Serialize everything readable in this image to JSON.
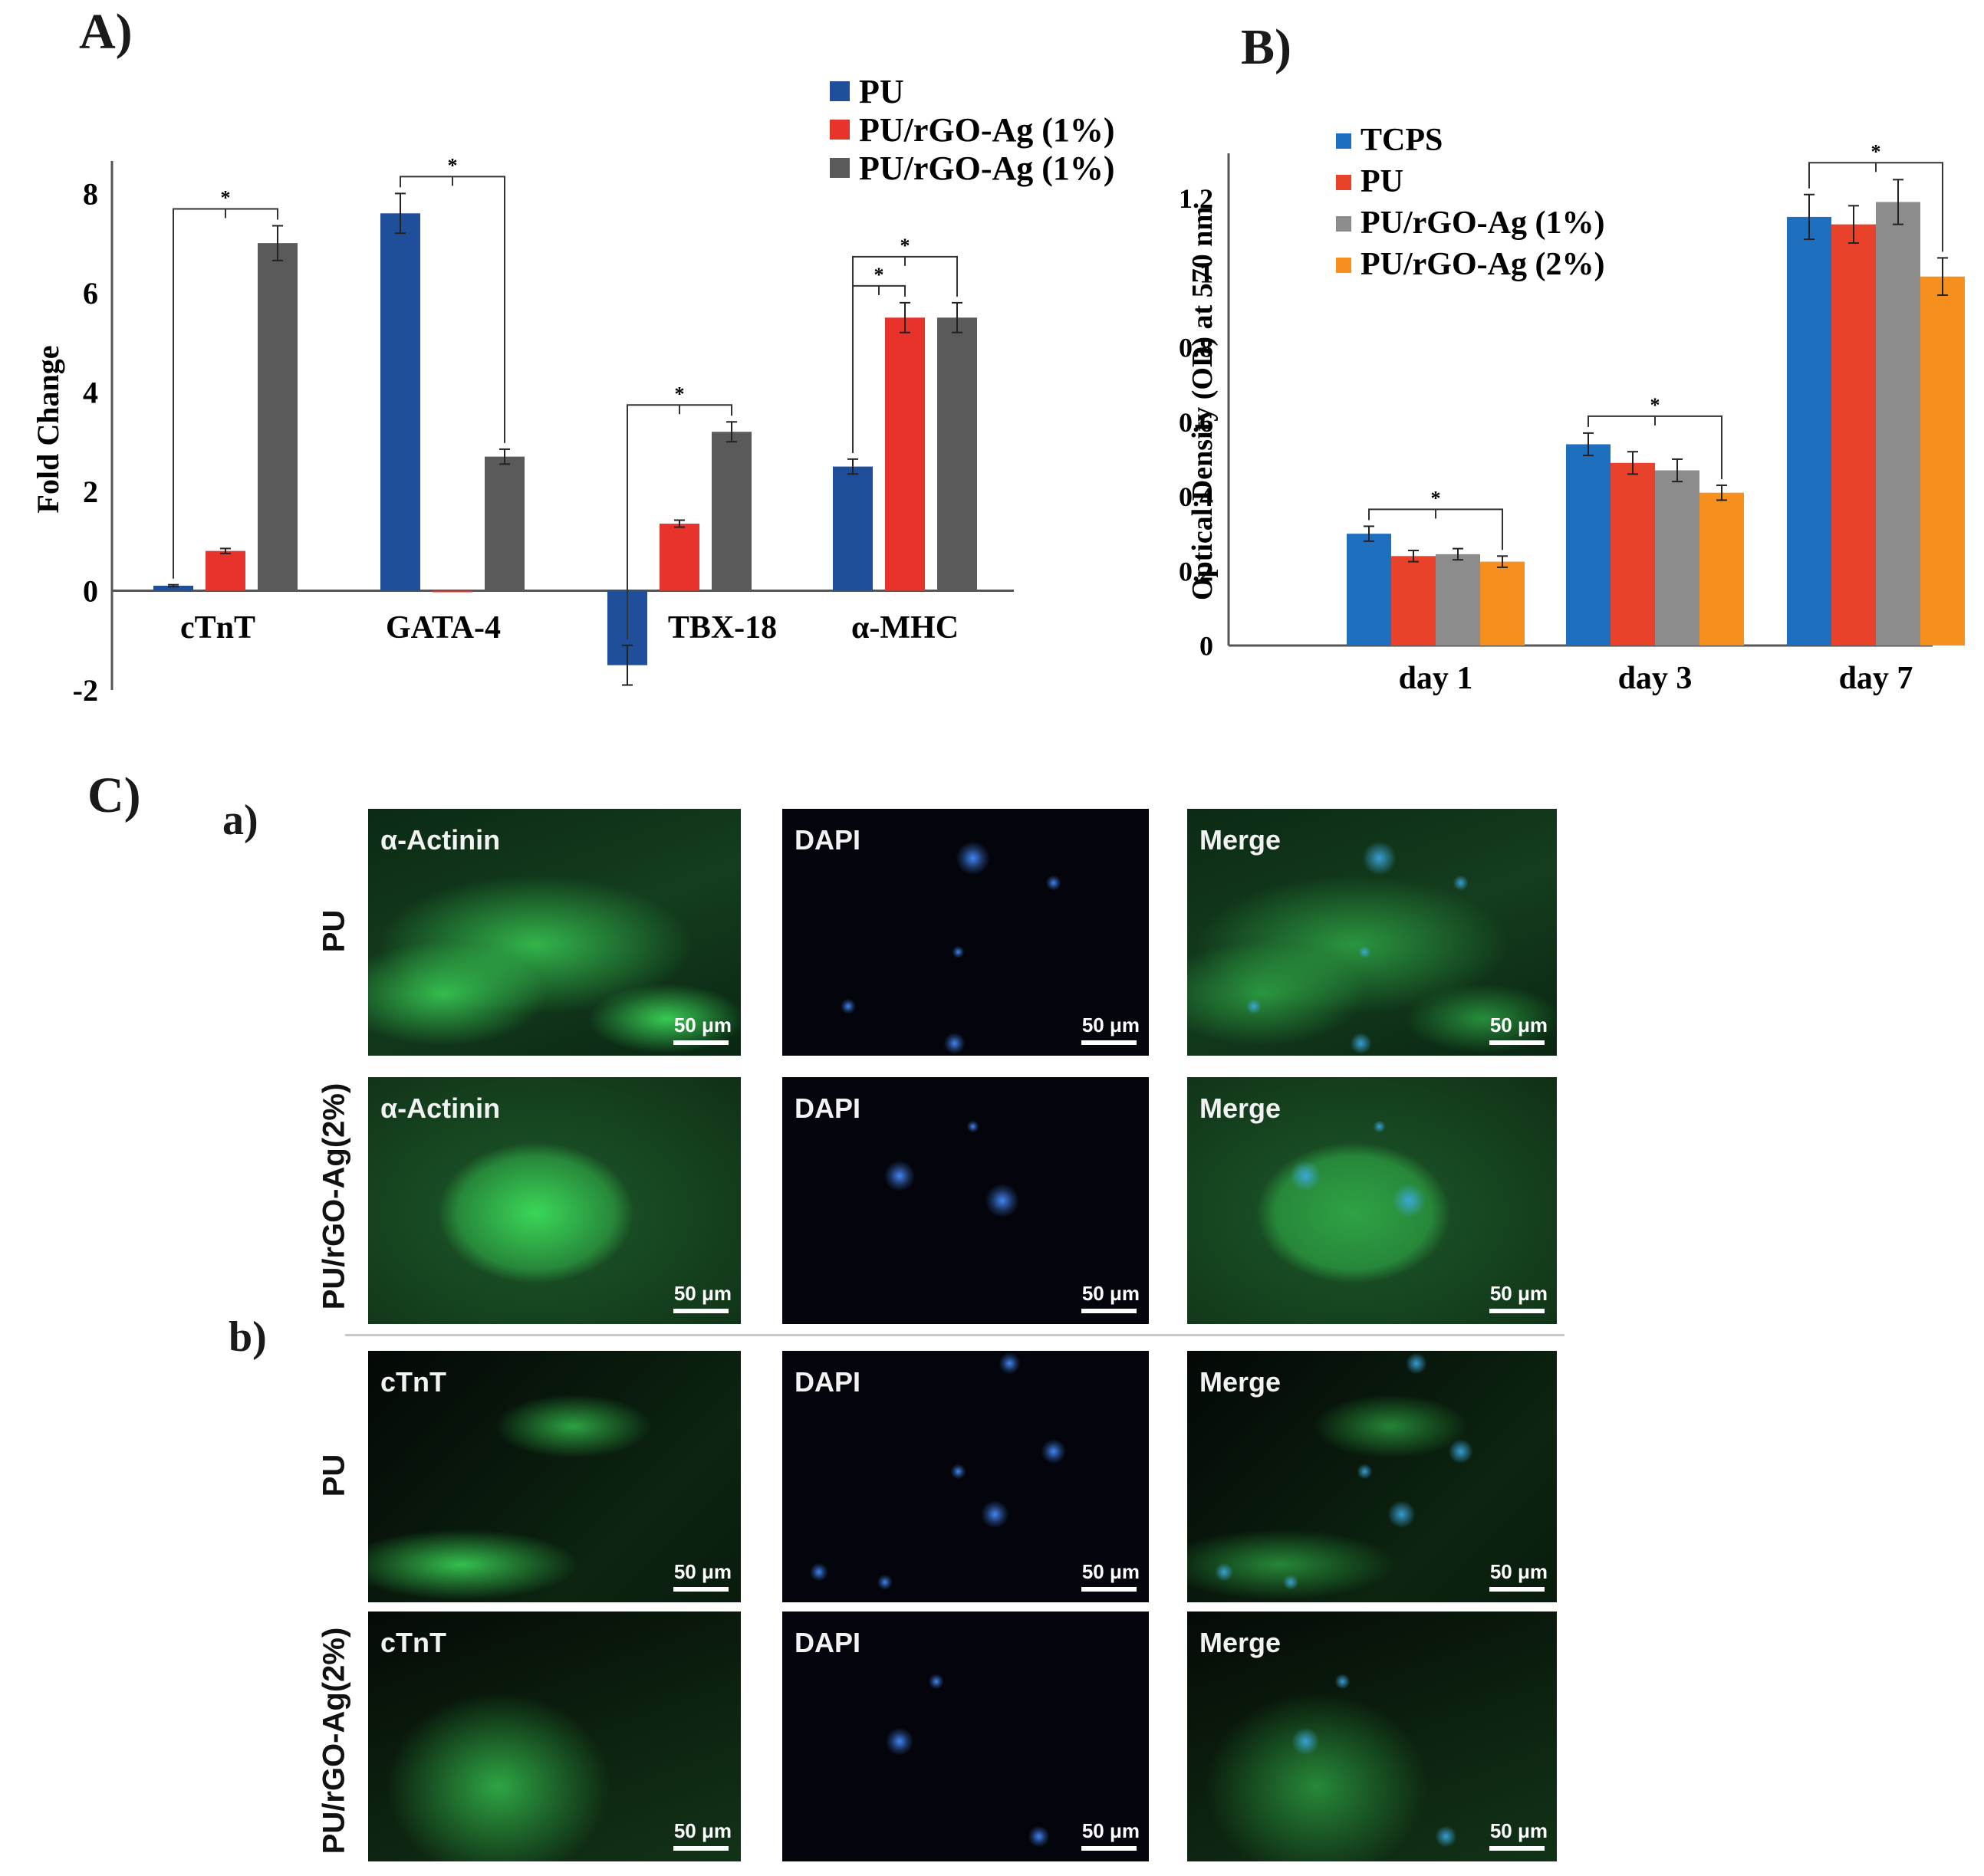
{
  "panels": {
    "A": "A)",
    "B": "B)",
    "C": "C)",
    "C_a": "a)",
    "C_b": "b)"
  },
  "chart_data": [
    {
      "panel": "A)",
      "type": "bar",
      "ylabel": "Fold Change",
      "xlabel": "",
      "ylim": [
        -2,
        8.5
      ],
      "yticks": [
        "8",
        "6",
        "4",
        "2",
        "0",
        "-2"
      ],
      "categories": [
        "cTnT",
        "GATA-4",
        "TBX-18",
        "α-MHC"
      ],
      "legend_position": "top-right",
      "series": [
        {
          "name": "PU",
          "color": "#1f4e9a",
          "values": [
            0.1,
            7.6,
            -1.5,
            2.5
          ]
        },
        {
          "name": "PU/rGO-Ag (1%)",
          "color": "#e8332a",
          "values": [
            0.8,
            0.0,
            1.35,
            5.5
          ]
        },
        {
          "name": "PU/rGO-Ag (1%)",
          "color": "#5a5a5a",
          "values": [
            7.0,
            2.7,
            3.2,
            5.5
          ]
        }
      ],
      "errors": [
        [
          0.02,
          0.4,
          0.4,
          0.15
        ],
        [
          0.05,
          0.0,
          0.07,
          0.3
        ],
        [
          0.35,
          0.15,
          0.2,
          0.3
        ]
      ],
      "significance": [
        {
          "category": 0,
          "from": 0,
          "to": 2,
          "label": "*"
        },
        {
          "category": 1,
          "from": 0,
          "to": 2,
          "label": "*"
        },
        {
          "category": 2,
          "from": 0,
          "to": 2,
          "label": "*"
        },
        {
          "category": 3,
          "from": 0,
          "to": 1,
          "label": "*"
        },
        {
          "category": 3,
          "from": 0,
          "to": 2,
          "label": "*"
        }
      ]
    },
    {
      "panel": "B)",
      "type": "bar",
      "ylabel": "Optical Density (OD) at 570 nm",
      "xlabel": "",
      "ylim": [
        0,
        1.3
      ],
      "yticks": [
        "1.2",
        "1",
        "0.8",
        "0.6",
        "0.4",
        "0.2",
        "0"
      ],
      "categories": [
        "day 1",
        "day 3",
        "day 7"
      ],
      "legend_position": "top-left",
      "series": [
        {
          "name": "TCPS",
          "color": "#1f6fbf",
          "values": [
            0.3,
            0.54,
            1.15
          ]
        },
        {
          "name": "PU",
          "color": "#e8432a",
          "values": [
            0.24,
            0.49,
            1.13
          ]
        },
        {
          "name": "PU/rGO-Ag (1%)",
          "color": "#8c8c8c",
          "values": [
            0.245,
            0.47,
            1.19
          ]
        },
        {
          "name": "PU/rGO-Ag (2%)",
          "color": "#f5901e",
          "values": [
            0.225,
            0.41,
            0.99
          ]
        }
      ],
      "errors": [
        [
          0.02,
          0.03,
          0.06
        ],
        [
          0.015,
          0.03,
          0.05
        ],
        [
          0.015,
          0.03,
          0.06
        ],
        [
          0.015,
          0.02,
          0.05
        ]
      ],
      "significance": [
        {
          "category": 0,
          "from": 0,
          "to": 3,
          "label": "*"
        },
        {
          "category": 1,
          "from": 0,
          "to": 3,
          "label": "*"
        },
        {
          "category": 2,
          "from": 0,
          "to": 3,
          "label": "*"
        }
      ]
    }
  ],
  "micrographs": {
    "scale_bar": "50 μm",
    "rows": [
      {
        "label": "PU",
        "panels": [
          "α-Actinin",
          "DAPI",
          "Merge"
        ]
      },
      {
        "label": "PU/rGO-Ag(2%)",
        "panels": [
          "α-Actinin",
          "DAPI",
          "Merge"
        ]
      },
      {
        "label": "PU",
        "panels": [
          "cTnT",
          "DAPI",
          "Merge"
        ]
      },
      {
        "label": "PU/rGO-Ag(2%)",
        "panels": [
          "cTnT",
          "DAPI",
          "Merge"
        ]
      }
    ]
  }
}
